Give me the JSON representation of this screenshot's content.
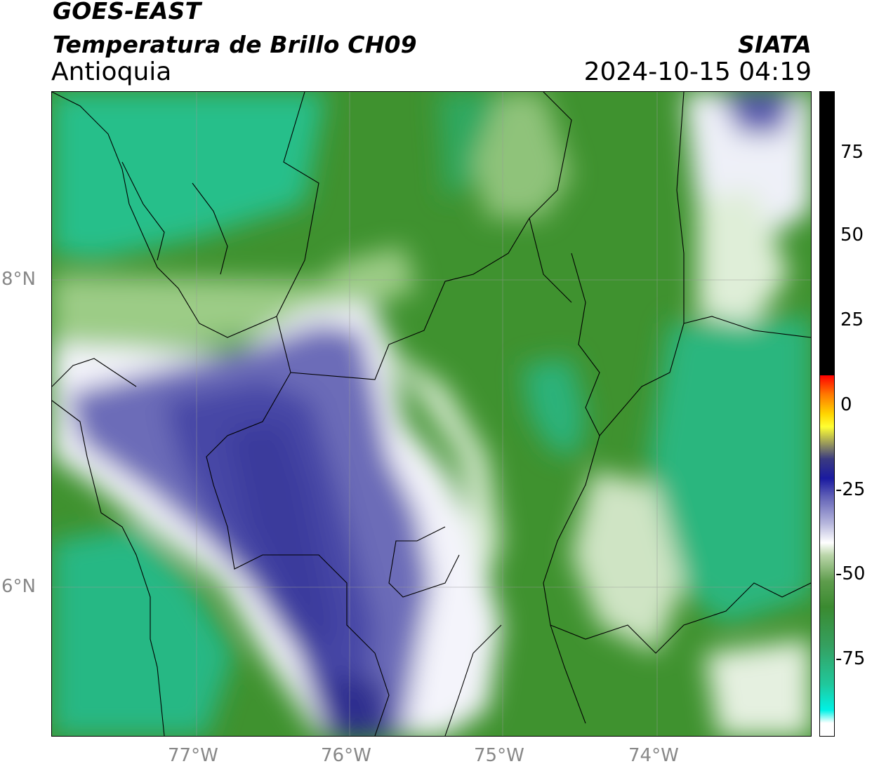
{
  "header": {
    "satellite": "GOES-EAST",
    "product": "Temperatura de Brillo CH09",
    "region": "Antioquia",
    "agency": "SIATA",
    "timestamp": "2024-10-15 04:19"
  },
  "map": {
    "lat_labels": [
      "8°N",
      "6°N"
    ],
    "lon_labels": [
      "77°W",
      "76°W",
      "75°W",
      "74°W"
    ],
    "colors": {
      "green_dark": "#3b8d2c",
      "green_mid": "#5ea14d",
      "teal": "#23c08c",
      "blue": "#3a3aa0",
      "white": "#ffffff"
    }
  },
  "colorbar": {
    "labels": [
      "75",
      "50",
      "25",
      "0",
      "-25",
      "-50",
      "-75"
    ]
  }
}
